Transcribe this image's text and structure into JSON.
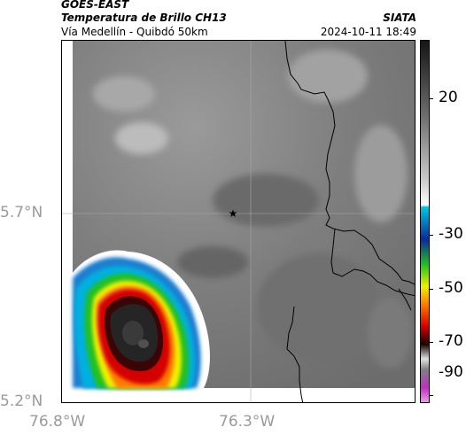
{
  "header": {
    "satellite": "GOES-EAST",
    "product": "Temperatura de Brillo CH13",
    "route": "Vía Medellín - Quibdó 50km",
    "org": "SIATA",
    "datetime": "2024-10-11 18:49"
  },
  "axes": {
    "x_ticks": [
      "76.8°W",
      "76.3°W"
    ],
    "y_ticks": [
      "5.7°N",
      "5.2°N"
    ]
  },
  "colorbar": {
    "tick_labels": [
      "20",
      "-30",
      "-50",
      "-70",
      "-90"
    ],
    "colors": {
      "warm_gray_top": "#151515",
      "warm_gray_bottom": "#ffffff",
      "cyan": "#00c8e0",
      "blue": "#0a2a9a",
      "green": "#22c022",
      "yellow": "#f0f000",
      "orange": "#ff7a00",
      "red": "#d40000",
      "dark": "#1a0000",
      "magenta": "#c030c0"
    }
  },
  "map": {
    "marker_icon": "star-icon",
    "border_color": "#000000"
  }
}
